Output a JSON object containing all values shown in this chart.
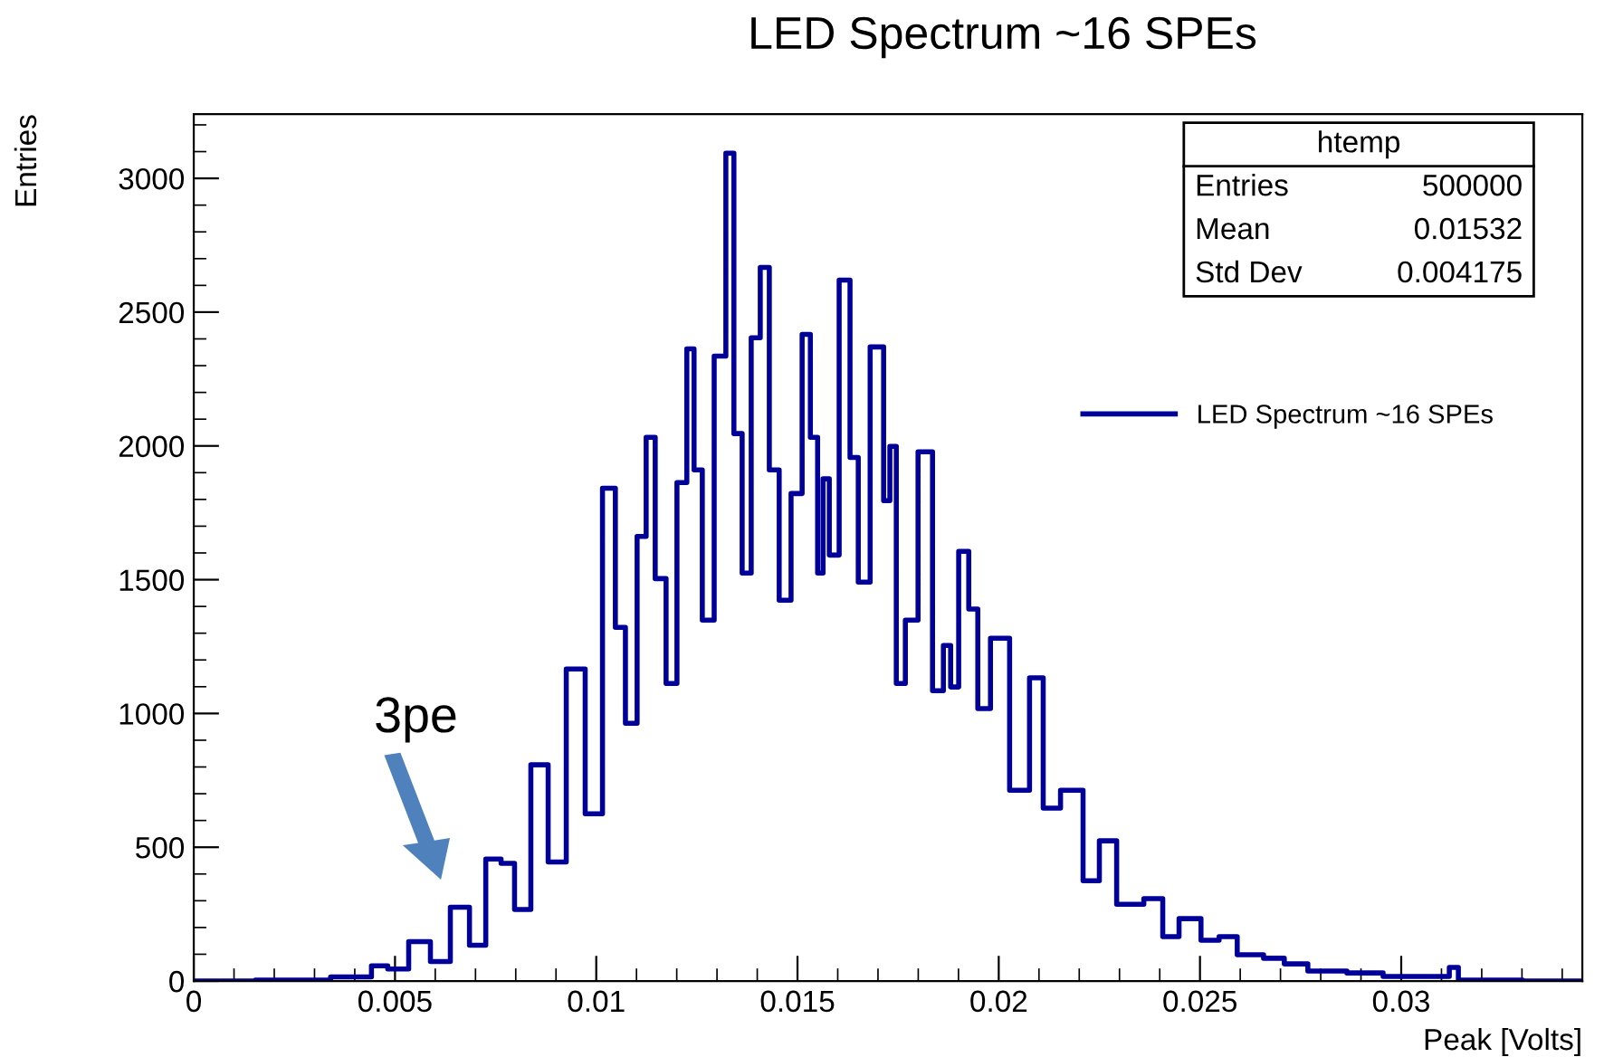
{
  "chart_data": {
    "type": "step",
    "title": "LED Spectrum ~16 SPEs",
    "xlabel": "Peak [Volts]",
    "ylabel": "Entries",
    "x": [
      0,
      0.00306,
      0.00374,
      0.00419,
      0.00464,
      0.005,
      0.00568,
      0.00608,
      0.00667,
      0.00703,
      0.00748,
      0.00779,
      0.00815,
      0.0086,
      0.00901,
      0.0095,
      0.00995,
      0.01036,
      0.01059,
      0.01086,
      0.01117,
      0.01131,
      0.01162,
      0.01185,
      0.01216,
      0.01234,
      0.01252,
      0.01275,
      0.01311,
      0.01333,
      0.01351,
      0.01374,
      0.01396,
      0.01419,
      0.01441,
      0.01468,
      0.015,
      0.01523,
      0.01541,
      0.01559,
      0.01568,
      0.0159,
      0.01617,
      0.01644,
      0.01658,
      0.01703,
      0.01725,
      0.01734,
      0.01757,
      0.01779,
      0.0182,
      0.01851,
      0.01874,
      0.01887,
      0.01914,
      0.01937,
      0.01959,
      0.02,
      0.02054,
      0.02099,
      0.02122,
      0.02185,
      0.02234,
      0.02266,
      0.0232,
      0.02401,
      0.02414,
      0.02482,
      0.02523,
      0.02572,
      0.02613,
      0.02703,
      0.02716,
      0.0282,
      0.0291,
      0.03,
      0.03108,
      0.03131,
      0.03153,
      0.0345
    ],
    "series": [
      {
        "name": "LED Spectrum ~16 SPEs",
        "color": "#000099",
        "values": [
          0,
          3,
          15,
          15,
          57,
          45,
          147,
          73,
          276,
          134,
          456,
          440,
          267,
          808,
          445,
          1166,
          625,
          1842,
          1322,
          963,
          1662,
          2032,
          1504,
          1112,
          1863,
          2363,
          1910,
          1349,
          2336,
          3094,
          2046,
          1525,
          2404,
          2667,
          1910,
          1423,
          1822,
          2417,
          2032,
          1525,
          1877,
          1592,
          2620,
          1957,
          1491,
          2370,
          1795,
          1998,
          1112,
          1349,
          1978,
          1085,
          1254,
          1099,
          1606,
          1390,
          1018,
          1281,
          713,
          1133,
          646,
          713,
          375,
          524,
          287,
          308,
          166,
          233,
          152,
          166,
          98,
          85,
          64,
          37,
          30,
          17,
          17,
          51,
          3,
          0
        ]
      }
    ],
    "xlim": [
      0,
      0.0345
    ],
    "xticks": [
      0,
      0.005,
      0.01,
      0.015,
      0.02,
      0.025,
      0.03
    ],
    "ylim": [
      0,
      3240
    ],
    "yticks": [
      0,
      500,
      1000,
      1500,
      2000,
      2500,
      3000
    ],
    "annotations": [
      "3pe",
      "htemp",
      "Entries",
      "500000",
      "Mean",
      "0.01532",
      "Std Dev",
      "0.004175"
    ],
    "legend": "top right",
    "grid": false
  }
}
